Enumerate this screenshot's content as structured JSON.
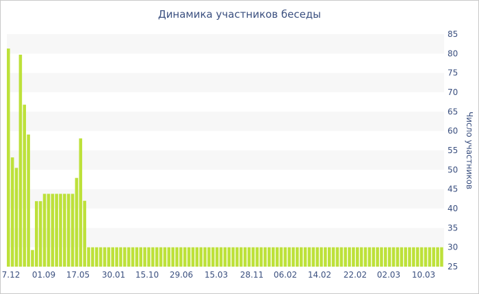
{
  "chart_data": {
    "type": "bar",
    "title": "Динамика участников беседы",
    "ylabel": "Число участников",
    "xlabel": "",
    "ylim": [
      25,
      85
    ],
    "y_ticks": [
      25,
      30,
      35,
      40,
      45,
      50,
      55,
      60,
      65,
      70,
      75,
      80,
      85
    ],
    "y_axis_position": "right",
    "bar_color": "#bde13a",
    "x_tick_labels": [
      "7.12",
      "01.09",
      "17.05",
      "30.01",
      "15.10",
      "29.06",
      "15.03",
      "28.11",
      "06.02",
      "14.02",
      "22.02",
      "02.03",
      "10.03"
    ],
    "series": [
      {
        "values": [
          81.3,
          53.2,
          50.5,
          79.7,
          66.8,
          59.1,
          29.3,
          41.9,
          41.9,
          43.8,
          43.8,
          43.8,
          43.8,
          43.8,
          43.8,
          43.8,
          43.8,
          47.9,
          58.1,
          42.0,
          30,
          30,
          30,
          30,
          30,
          30,
          30,
          30,
          30,
          30,
          30,
          30,
          30,
          30,
          30,
          30,
          30,
          30,
          30,
          30,
          30,
          30,
          30,
          30,
          30,
          30,
          30,
          30,
          30,
          30,
          30,
          30,
          30,
          30,
          30,
          30,
          30,
          30,
          30,
          30,
          30,
          30,
          30,
          30,
          30,
          30,
          30,
          30,
          30,
          30,
          30,
          30,
          30,
          30,
          30,
          30,
          30,
          30,
          30,
          30,
          30,
          30,
          30,
          30,
          30,
          30,
          30,
          30,
          30,
          30,
          30,
          30,
          30,
          30,
          30,
          30,
          30,
          30,
          30,
          30,
          30,
          30,
          30,
          30,
          30,
          30,
          30,
          30,
          30
        ]
      }
    ]
  }
}
